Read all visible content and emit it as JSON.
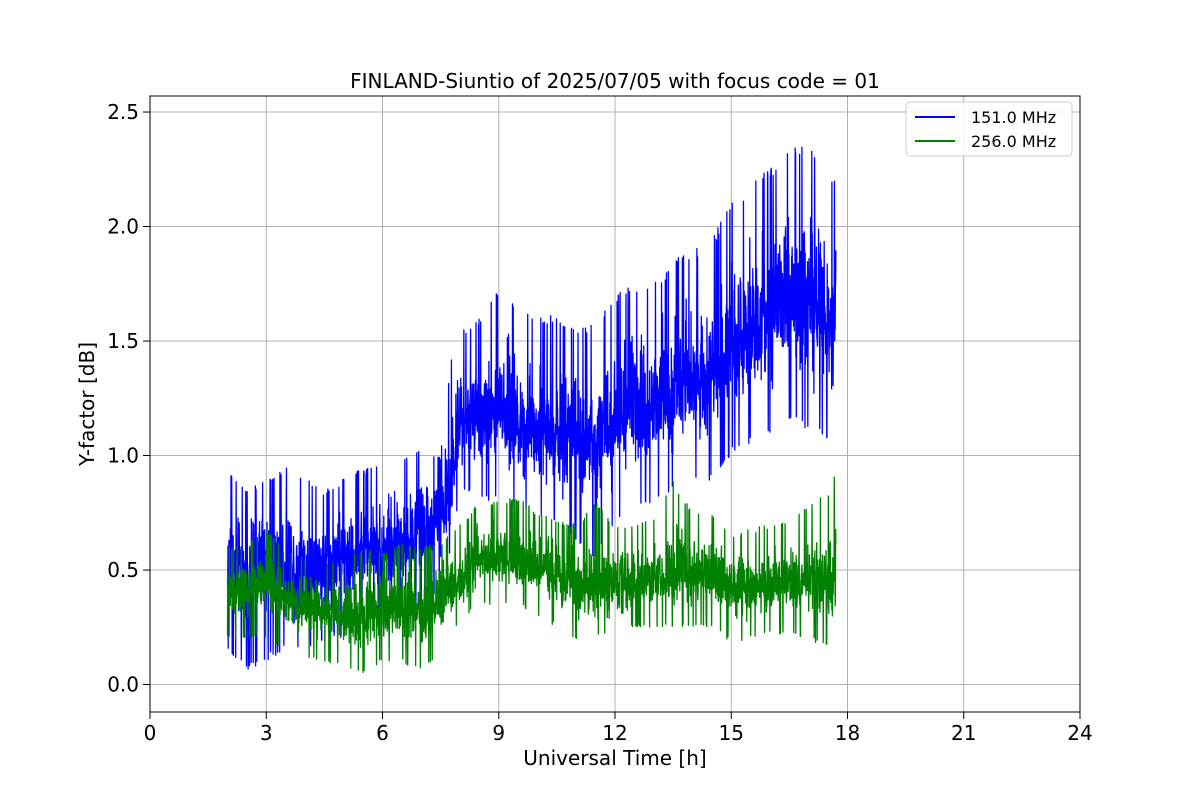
{
  "chart_data": {
    "type": "line",
    "title": "FINLAND-Siuntio of 2025/07/05 with focus code = 01",
    "xlabel": "Universal Time [h]",
    "ylabel": "Y-factor [dB]",
    "xlim": [
      0,
      24
    ],
    "ylim": [
      -0.12,
      2.57
    ],
    "x_ticks": [
      0,
      3,
      6,
      9,
      12,
      15,
      18,
      21,
      24
    ],
    "y_ticks": [
      0.0,
      0.5,
      1.0,
      1.5,
      2.0,
      2.5
    ],
    "x_tick_labels": [
      "0",
      "3",
      "6",
      "9",
      "12",
      "15",
      "18",
      "21",
      "24"
    ],
    "y_tick_labels": [
      "0.0",
      "0.5",
      "1.0",
      "1.5",
      "2.0",
      "2.5"
    ],
    "grid": true,
    "legend_position": "top-right",
    "series": [
      {
        "name": "151.0 MHz",
        "color": "#0000ff",
        "x": [
          2.0,
          2.5,
          3.0,
          3.5,
          4.0,
          4.5,
          5.0,
          5.5,
          6.0,
          6.5,
          7.0,
          7.5,
          7.8,
          8.0,
          8.5,
          9.0,
          9.5,
          10.0,
          10.5,
          11.0,
          11.5,
          12.0,
          12.5,
          13.0,
          13.5,
          14.0,
          14.5,
          15.0,
          15.5,
          16.0,
          16.5,
          17.0,
          17.5,
          17.7
        ],
        "center": [
          0.5,
          0.52,
          0.55,
          0.52,
          0.5,
          0.52,
          0.55,
          0.58,
          0.6,
          0.62,
          0.65,
          0.72,
          0.85,
          1.15,
          1.18,
          1.2,
          1.15,
          1.12,
          1.1,
          1.08,
          1.1,
          1.15,
          1.2,
          1.22,
          1.28,
          1.32,
          1.35,
          1.45,
          1.52,
          1.6,
          1.66,
          1.68,
          1.65,
          1.62
        ],
        "low": [
          0.15,
          0.05,
          0.1,
          0.15,
          0.15,
          0.2,
          0.2,
          0.25,
          0.25,
          0.3,
          0.35,
          0.4,
          0.6,
          0.85,
          0.8,
          0.8,
          0.75,
          0.72,
          0.7,
          0.6,
          0.55,
          0.7,
          0.75,
          0.8,
          0.85,
          0.88,
          0.88,
          1.0,
          1.05,
          1.1,
          1.15,
          1.1,
          1.05,
          1.05
        ],
        "high": [
          0.95,
          0.85,
          0.9,
          0.95,
          0.9,
          0.85,
          0.9,
          0.95,
          0.95,
          1.0,
          1.05,
          1.0,
          1.5,
          1.55,
          1.6,
          1.75,
          1.65,
          1.6,
          1.62,
          1.55,
          1.58,
          1.7,
          1.75,
          1.75,
          1.85,
          1.9,
          1.95,
          2.1,
          2.2,
          2.25,
          2.35,
          2.35,
          2.25,
          2.2
        ]
      },
      {
        "name": "256.0 MHz",
        "color": "#008000",
        "x": [
          2.0,
          2.5,
          3.0,
          3.5,
          4.0,
          4.5,
          5.0,
          5.5,
          6.0,
          6.5,
          7.0,
          7.5,
          8.0,
          8.5,
          9.0,
          9.5,
          10.0,
          10.5,
          11.0,
          11.5,
          12.0,
          12.5,
          13.0,
          13.5,
          14.0,
          14.5,
          15.0,
          15.5,
          16.0,
          16.5,
          17.0,
          17.5,
          17.7
        ],
        "center": [
          0.4,
          0.4,
          0.45,
          0.38,
          0.33,
          0.33,
          0.3,
          0.3,
          0.32,
          0.33,
          0.32,
          0.36,
          0.45,
          0.55,
          0.55,
          0.55,
          0.52,
          0.48,
          0.42,
          0.42,
          0.44,
          0.45,
          0.46,
          0.47,
          0.48,
          0.48,
          0.42,
          0.42,
          0.43,
          0.44,
          0.46,
          0.44,
          0.45
        ],
        "low": [
          0.2,
          0.2,
          0.2,
          0.15,
          0.12,
          0.1,
          0.08,
          0.05,
          0.1,
          0.1,
          0.05,
          0.15,
          0.28,
          0.35,
          0.35,
          0.35,
          0.3,
          0.25,
          0.2,
          0.2,
          0.22,
          0.25,
          0.25,
          0.25,
          0.25,
          0.25,
          0.18,
          0.2,
          0.22,
          0.22,
          0.2,
          0.15,
          0.2
        ],
        "high": [
          0.6,
          0.62,
          0.68,
          0.58,
          0.55,
          0.52,
          0.55,
          0.6,
          0.58,
          0.62,
          0.6,
          0.62,
          0.7,
          0.8,
          0.8,
          0.82,
          0.75,
          0.72,
          0.7,
          0.8,
          0.7,
          0.7,
          0.72,
          0.9,
          0.75,
          0.75,
          0.65,
          0.68,
          0.7,
          0.72,
          0.78,
          0.85,
          0.95
        ]
      }
    ]
  }
}
